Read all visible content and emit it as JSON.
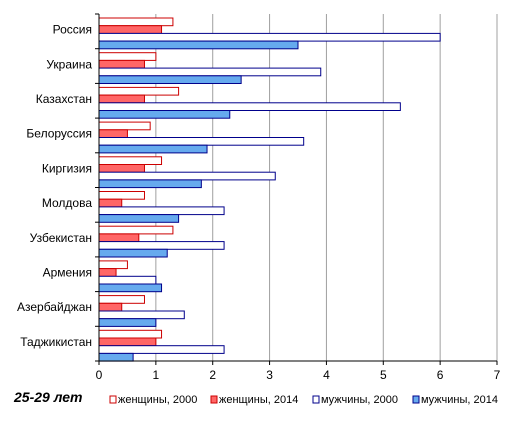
{
  "caption": "25-29 лет",
  "chart_data": {
    "type": "bar",
    "orientation": "horizontal",
    "categories": [
      "Россия",
      "Украина",
      "Казахстан",
      "Белоруссия",
      "Киргизия",
      "Молдова",
      "Узбекистан",
      "Армения",
      "Азербайджан",
      "Таджикистан"
    ],
    "series": [
      {
        "name": "женщины, 2000",
        "values": [
          1.3,
          1.0,
          1.4,
          0.9,
          1.1,
          0.8,
          1.3,
          0.5,
          0.8,
          1.1
        ]
      },
      {
        "name": "женщины, 2014",
        "values": [
          1.1,
          0.8,
          0.8,
          0.5,
          0.8,
          0.4,
          0.7,
          0.3,
          0.4,
          1.0
        ]
      },
      {
        "name": "мужчины, 2000",
        "values": [
          6.0,
          3.9,
          5.3,
          3.6,
          3.1,
          2.2,
          2.2,
          1.0,
          1.5,
          2.2
        ]
      },
      {
        "name": "мужчины, 2014",
        "values": [
          3.5,
          2.5,
          2.3,
          1.9,
          1.8,
          1.4,
          1.2,
          1.1,
          1.0,
          0.6
        ]
      }
    ],
    "xlim": [
      0,
      7
    ],
    "xticks": [
      "0",
      "1",
      "2",
      "3",
      "4",
      "5",
      "6",
      "7"
    ],
    "grid": "vertical",
    "legend": "bottom",
    "colors": {
      "women_2000_fill": "#ffffff",
      "women_2000_stroke": "#cc0000",
      "women_2014_fill": "#ff6666",
      "women_2014_stroke": "#cc0000",
      "men_2000_fill": "#ffffff",
      "men_2000_stroke": "#00008b",
      "men_2014_fill": "#66aaee",
      "men_2014_stroke": "#00008b",
      "grid": "#a0a0a0"
    }
  }
}
